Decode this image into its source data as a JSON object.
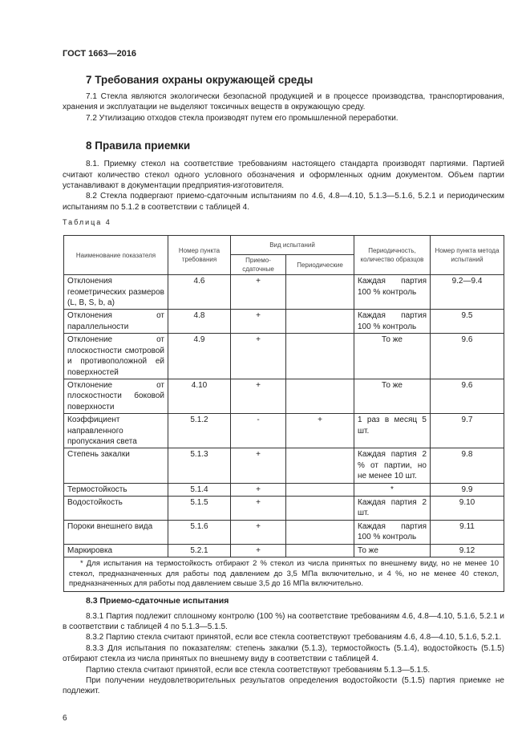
{
  "header": "ГОСТ 1663—2016",
  "section7": {
    "title": "7 Требования охраны окружающей среды",
    "p1": "7.1 Стекла являются экологически безопасной продукцией и в процессе производства, транспортирования, хранения и эксплуатации не выделяют токсичных веществ в окружающую среду.",
    "p2": "7.2 Утилизацию отходов стекла производят путем его промышленной переработки."
  },
  "section8": {
    "title": "8 Правила приемки",
    "p1": "8.1. Приемку стекол на соответствие требованиям настоящего стандарта производят партиями. Партией считают количество стекол одного условного обозначения и оформленных одним документом. Объем партии устанавливают в документации предприятия-изготовителя.",
    "p2": "8.2 Стекла подвергают приемо-сдаточным испытаниям по 4.6, 4.8—4.10, 5.1.3—5.1.6, 5.2.1 и периодическим испытаниям по 5.1.2 в соответствии с таблицей 4."
  },
  "table": {
    "caption": "Таблица 4",
    "headers": {
      "name": "Наименование показателя",
      "req": "Номер пункта требования",
      "kind": "Вид испытаний",
      "acc": "Приемо-сдаточные",
      "per": "Периодические",
      "freq": "Периодичность, количество образцов",
      "method": "Номер пункта метода испытаний"
    },
    "rows": [
      {
        "name": "Отклонения геометрических размеров (L, B, S, b, a)",
        "req": "4.6",
        "acc": "+",
        "per": "",
        "freq": "Каждая партия 100 % контроль",
        "method": "9.2—9.4"
      },
      {
        "name": "Отклонения от параллельности",
        "req": "4.8",
        "acc": "+",
        "per": "",
        "freq": "Каждая партия 100 % контроль",
        "method": "9.5"
      },
      {
        "name": "Отклонение от плоскостности смотровой и противоположной ей поверхностей",
        "req": "4.9",
        "acc": "+",
        "per": "",
        "freq": "То же",
        "method": "9.6"
      },
      {
        "name": "Отклонение от плоскостности боковой поверхности",
        "req": "4.10",
        "acc": "+",
        "per": "",
        "freq": "То же",
        "method": "9.6"
      },
      {
        "name": "Коэффициент направленного пропускания света",
        "req": "5.1.2",
        "acc": "-",
        "per": "+",
        "freq": "1 раз в месяц 5 шт.",
        "method": "9.7"
      },
      {
        "name": "Степень закалки",
        "req": "5.1.3",
        "acc": "+",
        "per": "",
        "freq": "Каждая партия 2 % от партии, но не менее 10 шт.",
        "method": "9.8"
      },
      {
        "name": "Термостойкость",
        "req": "5.1.4",
        "acc": "+",
        "per": "",
        "freq": "*",
        "method": "9.9"
      },
      {
        "name": "Водостойкость",
        "req": "5.1.5",
        "acc": "+",
        "per": "",
        "freq": "Каждая партия 2 шт.",
        "method": "9.10"
      },
      {
        "name": "Пороки внешнего вида",
        "req": "5.1.6",
        "acc": "+",
        "per": "",
        "freq": "Каждая партия 100 % контроль",
        "method": "9.11"
      },
      {
        "name": "Маркировка",
        "req": "5.2.1",
        "acc": "+",
        "per": "",
        "freq": "То же",
        "method": "9.12"
      }
    ],
    "footnote": "* Для испытания на термостойкость отбирают 2 % стекол из числа принятых по внешнему виду, но не менее 10 стекол, предназначенных для работы под давлением до 3,5 МПа включительно, и 4 %, но не менее 40 стекол, предназначенных для работы под давлением свыше 3,5 до 16 МПа включительно."
  },
  "section83": {
    "title": "8.3 Приемо-сдаточные испытания",
    "p1": "8.3.1 Партия подлежит сплошному контролю (100 %) на соответствие требованиям 4.6, 4.8—4.10, 5.1.6, 5.2.1 и в соответствии с таблицей 4 по 5.1.3—5.1.5.",
    "p2": "8.3.2 Партию стекла считают принятой, если все стекла соответствуют требованиям 4.6, 4.8—4.10, 5.1.6, 5.2.1.",
    "p3": "8.3.3 Для испытания по показателям: степень закалки (5.1.3), термостойкость (5.1.4), водостойкость (5.1.5) отбирают стекла из числа принятых по внешнему виду в соответствии с таблицей 4.",
    "p4": "Партию стекла считают принятой, если все стекла соответствуют требованиям 5.1.3—5.1.5.",
    "p5": "При получении неудовлетворительных результатов определения водостойкости (5.1.5) партия приемке не подлежит."
  },
  "page_number": "6"
}
